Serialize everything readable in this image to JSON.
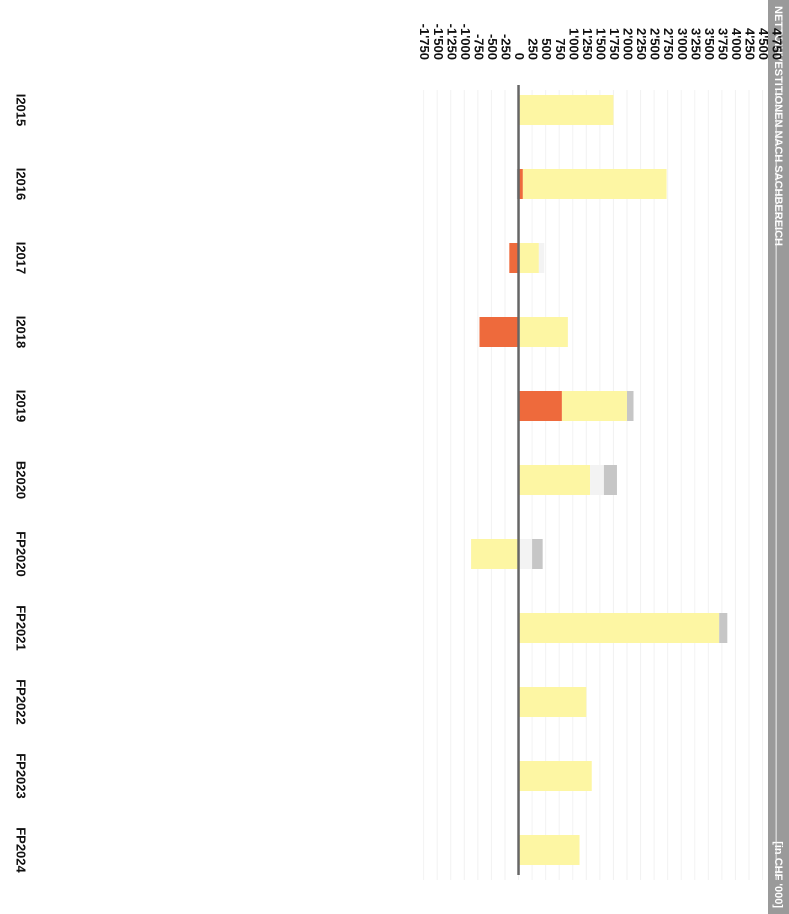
{
  "chart_data": {
    "type": "bar",
    "stacked": true,
    "title": "NETTOINVESTITIONEN NACH SACHBEREICH",
    "subtitle": "[in CHF '000]",
    "categories": [
      "I2015",
      "I2016",
      "I2017",
      "I2018",
      "I2019",
      "B2020",
      "FP2020",
      "FP2021",
      "FP2022",
      "FP2023",
      "FP2024"
    ],
    "series": [
      {
        "color": "#ee6a3c",
        "values": [
          0,
          80,
          -170,
          -720,
          800,
          0,
          0,
          0,
          0,
          0,
          0
        ]
      },
      {
        "color": "#fdf6a3",
        "values": [
          1750,
          2650,
          375,
          910,
          1200,
          1320,
          -875,
          3700,
          1250,
          1350,
          1125
        ]
      },
      {
        "color": "#f3f3f3",
        "values": [
          0,
          0,
          100,
          0,
          0,
          255,
          250,
          0,
          0,
          0,
          0
        ]
      },
      {
        "color": "#c6c6c6",
        "values": [
          0,
          -30,
          0,
          0,
          120,
          240,
          195,
          150,
          0,
          0,
          0
        ]
      }
    ],
    "ylim": [
      -1750,
      4750
    ],
    "yticks": [
      {
        "value": -1750,
        "label": "-1'750"
      },
      {
        "value": -1500,
        "label": "-1'500"
      },
      {
        "value": -1250,
        "label": "-1'250"
      },
      {
        "value": -1000,
        "label": "-1'000"
      },
      -750,
      -500,
      -250,
      0,
      250,
      500,
      750,
      {
        "value": 1000,
        "label": "1'000"
      },
      {
        "value": 1250,
        "label": "1'250"
      },
      {
        "value": 1500,
        "label": "1'500"
      },
      {
        "value": 1750,
        "label": "1'750"
      },
      {
        "value": 2000,
        "label": "2'000"
      },
      {
        "value": 2250,
        "label": "2'250"
      },
      {
        "value": 2500,
        "label": "2'500"
      },
      {
        "value": 2750,
        "label": "2'750"
      },
      {
        "value": 3000,
        "label": "3'000"
      },
      {
        "value": 3250,
        "label": "3'250"
      },
      {
        "value": 3500,
        "label": "3'500"
      },
      {
        "value": 3750,
        "label": "3'750"
      },
      {
        "value": 4000,
        "label": "4'000"
      },
      {
        "value": 4250,
        "label": "4'250"
      },
      {
        "value": 4500,
        "label": "4'500"
      },
      {
        "value": 4750,
        "label": "4'750"
      }
    ],
    "grid": true,
    "rotated": true
  }
}
